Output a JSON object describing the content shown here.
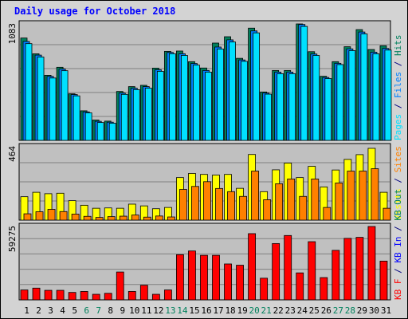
{
  "title": "Daily usage for October 2018",
  "colors": {
    "background": "#d3d3d3",
    "plot_bg": "#c0c0c0",
    "grid": "#808080",
    "hits": "#00805c",
    "files": "#0080ff",
    "pages": "#00e0ff",
    "visits": "#ffff00",
    "sites": "#ff8000",
    "kbytes": "#ff0000",
    "title": "#0000ff",
    "weekend": "#00805c",
    "weekday": "#000080"
  },
  "chart_data": [
    {
      "type": "bar",
      "panel": "top",
      "max_label": "1083",
      "ylim": [
        0,
        1083
      ],
      "legend_right": [
        {
          "text": "Pages",
          "color": "#00e0ff"
        },
        {
          "text": " / ",
          "color": "#000080"
        },
        {
          "text": "Files",
          "color": "#0080ff"
        },
        {
          "text": " / ",
          "color": "#000080"
        },
        {
          "text": "Hits",
          "color": "#00805c"
        }
      ],
      "categories": [
        "1",
        "2",
        "3",
        "4",
        "5",
        "6",
        "7",
        "8",
        "9",
        "10",
        "11",
        "12",
        "13",
        "14",
        "15",
        "16",
        "17",
        "18",
        "19",
        "20",
        "21",
        "22",
        "23",
        "24",
        "25",
        "26",
        "27",
        "28",
        "29",
        "30",
        "31"
      ],
      "series": [
        {
          "name": "Hits",
          "values": [
            952,
            805,
            605,
            680,
            433,
            275,
            189,
            179,
            455,
            500,
            512,
            672,
            828,
            831,
            732,
            673,
            905,
            964,
            763,
            1044,
            450,
            650,
            650,
            1090,
            825,
            596,
            732,
            871,
            1030,
            845,
            880
          ]
        },
        {
          "name": "Files",
          "values": [
            920,
            793,
            595,
            663,
            426,
            265,
            177,
            169,
            440,
            485,
            500,
            657,
            818,
            806,
            715,
            650,
            868,
            935,
            748,
            1018,
            440,
            635,
            635,
            1078,
            803,
            585,
            717,
            851,
            1008,
            820,
            855
          ]
        },
        {
          "name": "Pages",
          "values": [
            900,
            775,
            580,
            648,
            414,
            256,
            166,
            160,
            428,
            472,
            486,
            642,
            806,
            790,
            700,
            635,
            850,
            915,
            735,
            1000,
            430,
            620,
            620,
            1060,
            790,
            575,
            705,
            835,
            990,
            805,
            840
          ]
        }
      ]
    },
    {
      "type": "bar",
      "panel": "middle",
      "max_label": "464",
      "ylim": [
        0,
        464
      ],
      "legend_right": [
        {
          "text": "Visits",
          "color": "#ffff00"
        },
        {
          "text": " / ",
          "color": "#000080"
        },
        {
          "text": "Sites",
          "color": "#ff8000"
        }
      ],
      "categories": [
        "1",
        "2",
        "3",
        "4",
        "5",
        "6",
        "7",
        "8",
        "9",
        "10",
        "11",
        "12",
        "13",
        "14",
        "15",
        "16",
        "17",
        "18",
        "19",
        "20",
        "21",
        "22",
        "23",
        "24",
        "25",
        "26",
        "27",
        "28",
        "29",
        "30",
        "31"
      ],
      "series": [
        {
          "name": "Visits",
          "values": [
            148,
            176,
            167,
            170,
            123,
            94,
            75,
            77,
            75,
            101,
            90,
            72,
            80,
            269,
            295,
            289,
            285,
            289,
            201,
            415,
            180,
            318,
            361,
            269,
            340,
            210,
            317,
            384,
            414,
            454,
            176
          ]
        },
        {
          "name": "Sites",
          "values": [
            40,
            53,
            68,
            54,
            38,
            24,
            17,
            22,
            25,
            32,
            19,
            26,
            20,
            194,
            213,
            243,
            200,
            180,
            150,
            310,
            129,
            230,
            260,
            150,
            260,
            80,
            235,
            310,
            310,
            325,
            75
          ]
        }
      ]
    },
    {
      "type": "bar",
      "panel": "bottom",
      "max_label": "59275",
      "ylim": [
        0,
        59275
      ],
      "legend_right": [
        {
          "text": "KB F",
          "color": "#ff0000"
        },
        {
          "text": " / ",
          "color": "#000080"
        },
        {
          "text": "KB In",
          "color": "#0000ff"
        },
        {
          "text": " / ",
          "color": "#000080"
        },
        {
          "text": "KB Out",
          "color": "#00805c"
        }
      ],
      "categories": [
        "1",
        "2",
        "3",
        "4",
        "5",
        "6",
        "7",
        "8",
        "9",
        "10",
        "11",
        "12",
        "13",
        "14",
        "15",
        "16",
        "17",
        "18",
        "19",
        "20",
        "21",
        "22",
        "23",
        "24",
        "25",
        "26",
        "27",
        "28",
        "29",
        "30",
        "31"
      ],
      "series": [
        {
          "name": "KB F",
          "values": [
            8000,
            9500,
            7700,
            7700,
            6000,
            6800,
            4500,
            5300,
            22500,
            6800,
            11800,
            4500,
            8000,
            36500,
            39500,
            36000,
            36000,
            29000,
            28000,
            53500,
            17500,
            45500,
            52000,
            21800,
            47000,
            18000,
            40000,
            49700,
            50500,
            59300,
            31300
          ]
        }
      ]
    }
  ],
  "x_axis": {
    "labels": [
      "1",
      "2",
      "3",
      "4",
      "5",
      "6",
      "7",
      "8",
      "9",
      "10",
      "11",
      "12",
      "13",
      "14",
      "15",
      "16",
      "17",
      "18",
      "19",
      "20",
      "21",
      "22",
      "23",
      "24",
      "25",
      "26",
      "27",
      "28",
      "29",
      "30",
      "31"
    ],
    "weekend_days": [
      "6",
      "7",
      "13",
      "14",
      "20",
      "21",
      "27",
      "28"
    ]
  }
}
